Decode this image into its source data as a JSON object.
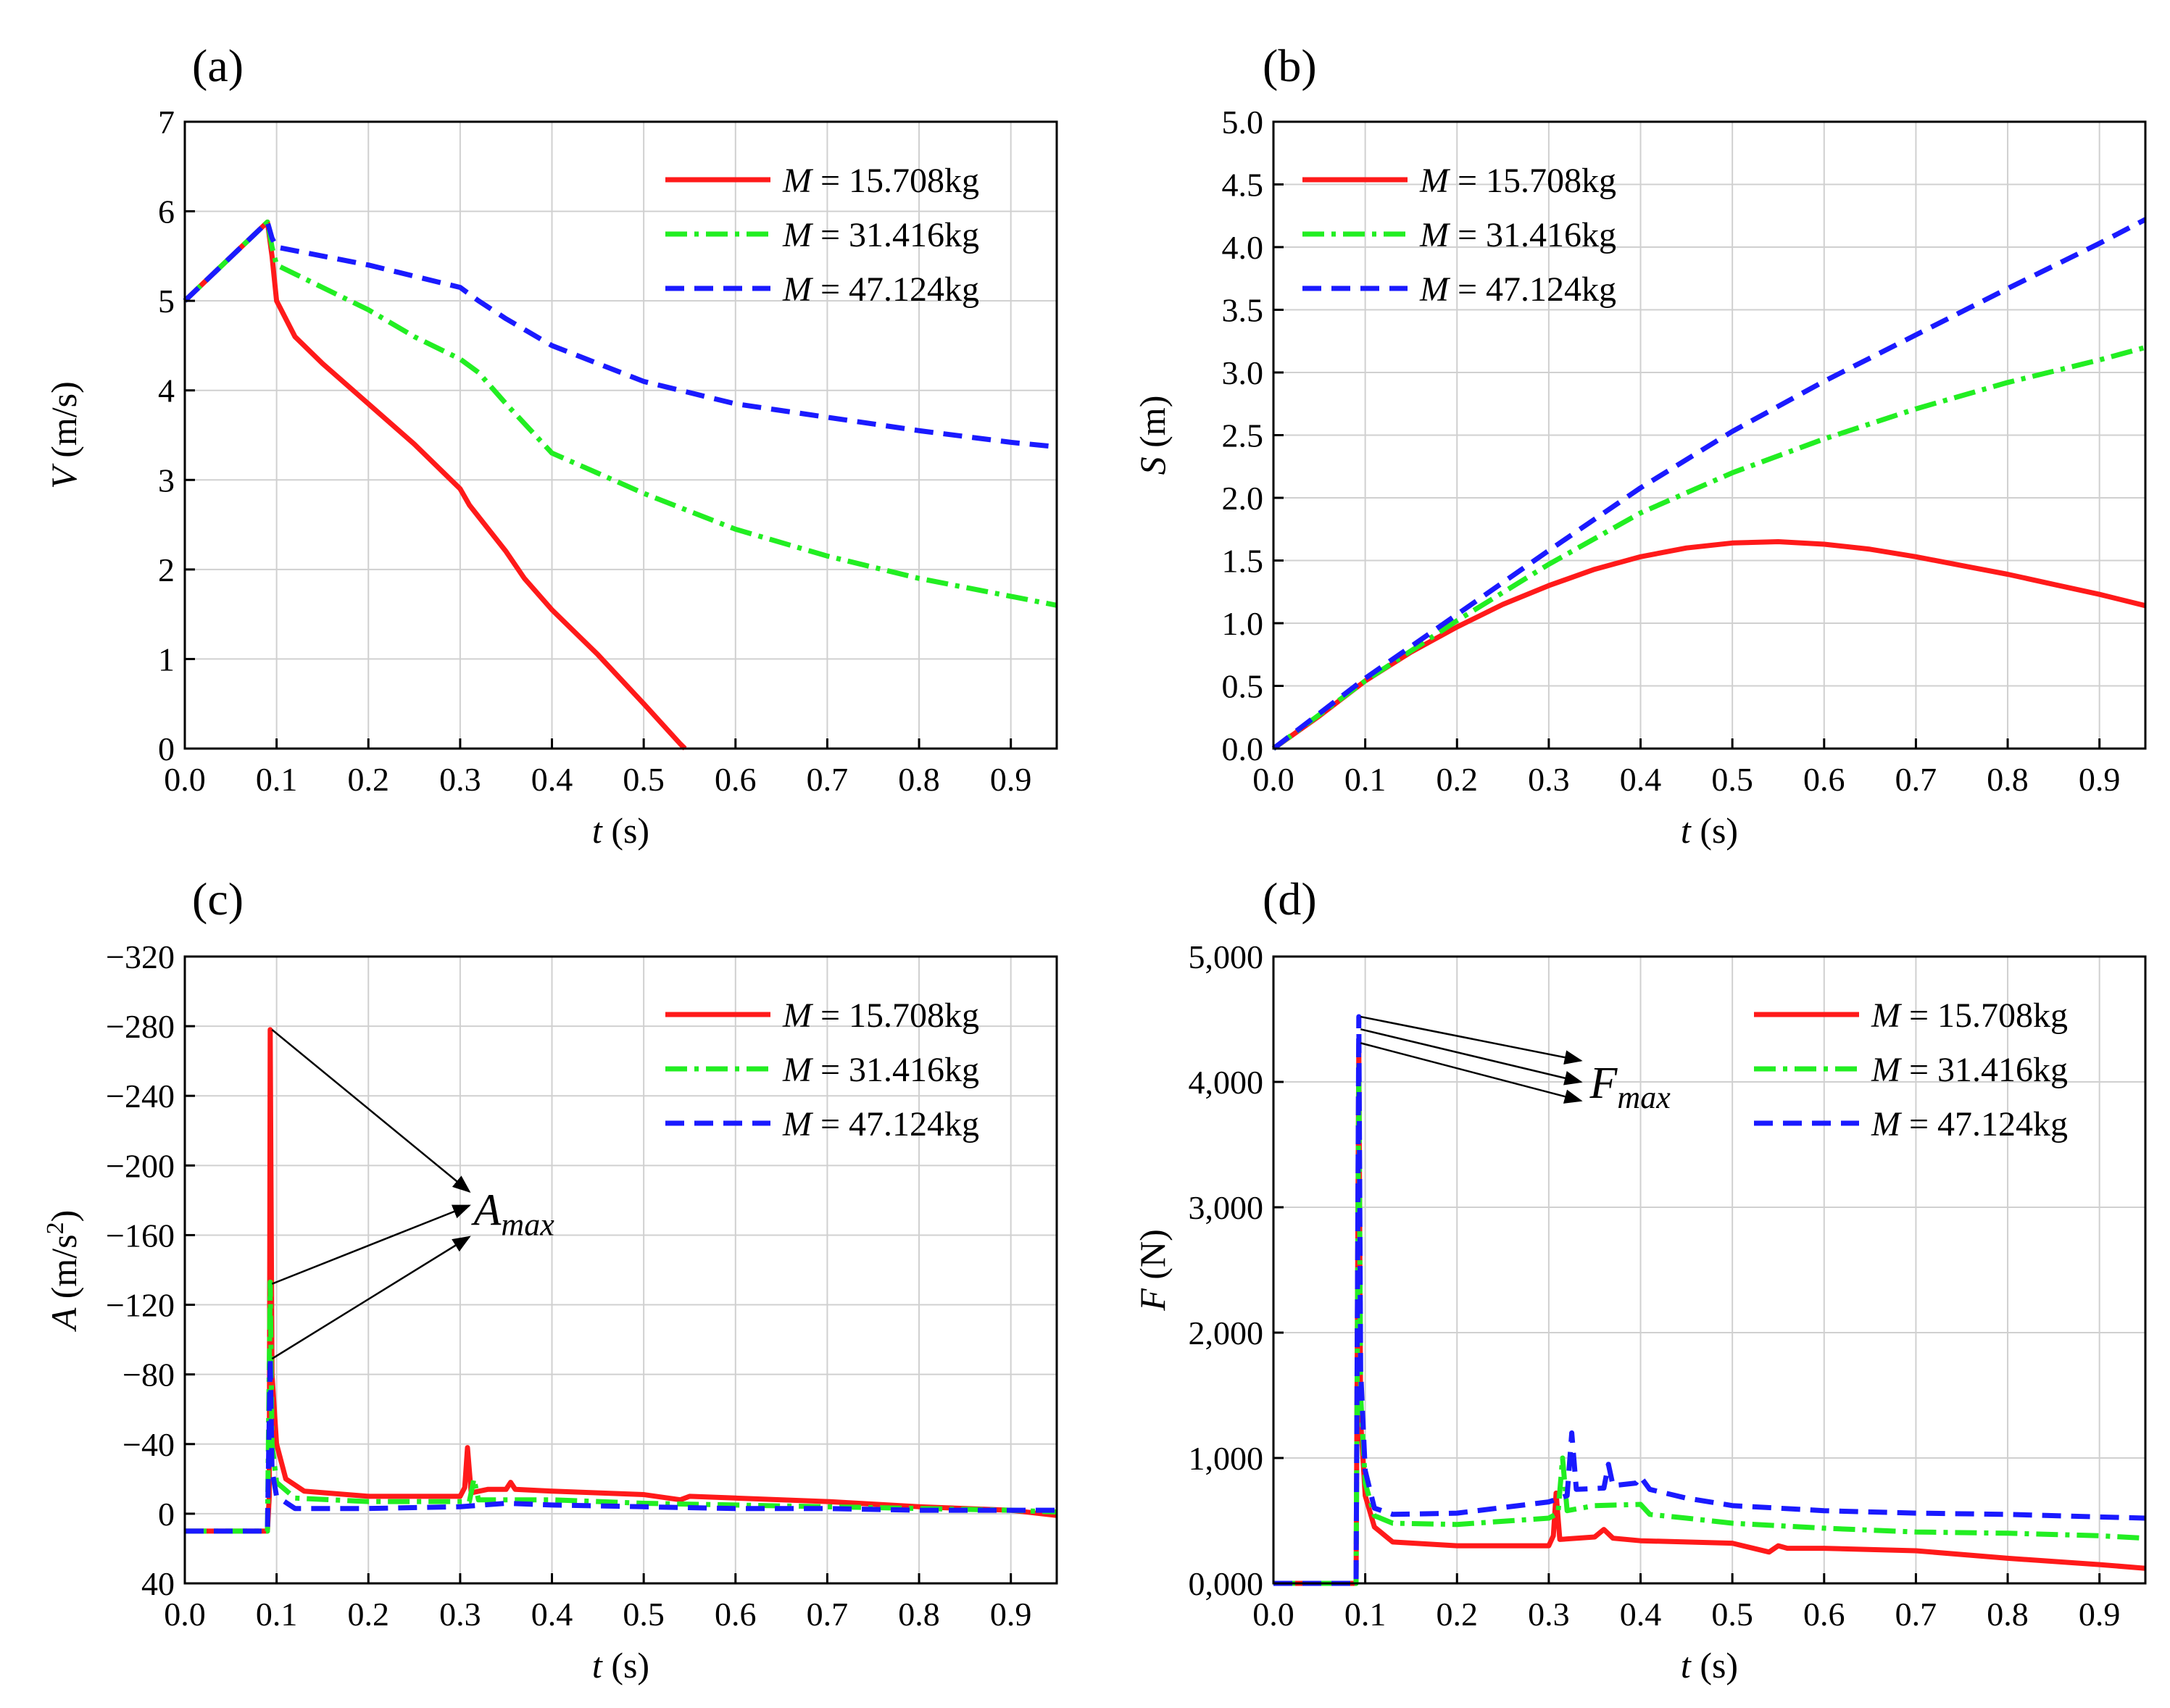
{
  "chart_data": [
    {
      "type": "line",
      "panel_label": "(a)",
      "xlabel_var": "t",
      "xlabel_unit": " (s)",
      "ylabel_var": "V",
      "ylabel_unit": " (m/s)",
      "xlim": [
        0,
        0.95
      ],
      "ylim": [
        0,
        7
      ],
      "y_inverted": false,
      "xticks": [
        0,
        0.1,
        0.2,
        0.3,
        0.4,
        0.5,
        0.6,
        0.7,
        0.8,
        0.9
      ],
      "xtick_labels": [
        "0.0",
        "0.1",
        "0.2",
        "0.3",
        "0.4",
        "0.5",
        "0.6",
        "0.7",
        "0.8",
        "0.9"
      ],
      "yticks": [
        0,
        1,
        2,
        3,
        4,
        5,
        6,
        7
      ],
      "ytick_labels": [
        "0",
        "1",
        "2",
        "3",
        "4",
        "5",
        "6",
        "7"
      ],
      "grid": true,
      "legend_position": "top-right",
      "series": [
        {
          "name": "M = 15.708kg",
          "legend_var": "M",
          "legend_text": " = 15.708kg",
          "color": "#ff1a1a",
          "dash": "solid",
          "x": [
            0,
            0.09,
            0.095,
            0.1,
            0.12,
            0.15,
            0.2,
            0.25,
            0.3,
            0.31,
            0.35,
            0.37,
            0.4,
            0.45,
            0.5,
            0.54,
            0.545
          ],
          "y": [
            5.0,
            5.88,
            5.5,
            5.0,
            4.6,
            4.3,
            3.85,
            3.4,
            2.9,
            2.72,
            2.2,
            1.9,
            1.55,
            1.05,
            0.5,
            0.05,
            0
          ]
        },
        {
          "name": "M = 31.416kg",
          "legend_var": "M",
          "legend_text": " = 31.416kg",
          "color": "#22ee22",
          "dash": "dashdot",
          "x": [
            0,
            0.09,
            0.095,
            0.1,
            0.15,
            0.2,
            0.25,
            0.3,
            0.32,
            0.35,
            0.4,
            0.5,
            0.6,
            0.7,
            0.8,
            0.9,
            0.95
          ],
          "y": [
            5.0,
            5.88,
            5.6,
            5.4,
            5.15,
            4.9,
            4.6,
            4.35,
            4.2,
            3.85,
            3.3,
            2.85,
            2.45,
            2.15,
            1.9,
            1.7,
            1.6
          ]
        },
        {
          "name": "M = 47.124kg",
          "legend_var": "M",
          "legend_text": " = 47.124kg",
          "color": "#1a1aff",
          "dash": "dash",
          "x": [
            0,
            0.09,
            0.095,
            0.1,
            0.2,
            0.3,
            0.32,
            0.35,
            0.4,
            0.5,
            0.6,
            0.7,
            0.8,
            0.9,
            0.95
          ],
          "y": [
            5.0,
            5.88,
            5.7,
            5.6,
            5.4,
            5.15,
            5.0,
            4.8,
            4.5,
            4.1,
            3.85,
            3.7,
            3.55,
            3.42,
            3.37
          ]
        }
      ],
      "annotations": []
    },
    {
      "type": "line",
      "panel_label": "(b)",
      "xlabel_var": "t",
      "xlabel_unit": " (s)",
      "ylabel_var": "S",
      "ylabel_unit": " (m)",
      "xlim": [
        0,
        0.95
      ],
      "ylim": [
        0,
        5
      ],
      "y_inverted": false,
      "xticks": [
        0,
        0.1,
        0.2,
        0.3,
        0.4,
        0.5,
        0.6,
        0.7,
        0.8,
        0.9
      ],
      "xtick_labels": [
        "0.0",
        "0.1",
        "0.2",
        "0.3",
        "0.4",
        "0.5",
        "0.6",
        "0.7",
        "0.8",
        "0.9"
      ],
      "yticks": [
        0,
        0.5,
        1,
        1.5,
        2,
        2.5,
        3,
        3.5,
        4,
        4.5,
        5
      ],
      "ytick_labels": [
        "0.0",
        "0.5",
        "1.0",
        "1.5",
        "2.0",
        "2.5",
        "3.0",
        "3.5",
        "4.0",
        "4.5",
        "5.0"
      ],
      "grid": true,
      "legend_position": "top-left",
      "series": [
        {
          "name": "M = 15.708kg",
          "legend_var": "M",
          "legend_text": " = 15.708kg",
          "color": "#ff1a1a",
          "dash": "solid",
          "x": [
            0,
            0.05,
            0.1,
            0.15,
            0.2,
            0.25,
            0.3,
            0.35,
            0.4,
            0.45,
            0.5,
            0.55,
            0.6,
            0.65,
            0.7,
            0.75,
            0.8,
            0.85,
            0.9,
            0.95
          ],
          "y": [
            0,
            0.26,
            0.54,
            0.77,
            0.97,
            1.15,
            1.3,
            1.43,
            1.53,
            1.6,
            1.64,
            1.65,
            1.63,
            1.59,
            1.53,
            1.46,
            1.39,
            1.31,
            1.23,
            1.14
          ]
        },
        {
          "name": "M = 31.416kg",
          "legend_var": "M",
          "legend_text": " = 31.416kg",
          "color": "#22ee22",
          "dash": "dashdot",
          "x": [
            0,
            0.1,
            0.2,
            0.3,
            0.4,
            0.5,
            0.6,
            0.7,
            0.8,
            0.9,
            0.95
          ],
          "y": [
            0,
            0.54,
            1.02,
            1.47,
            1.88,
            2.2,
            2.47,
            2.71,
            2.92,
            3.1,
            3.2
          ]
        },
        {
          "name": "M = 47.124kg",
          "legend_var": "M",
          "legend_text": " = 47.124kg",
          "color": "#1a1aff",
          "dash": "dash",
          "x": [
            0,
            0.1,
            0.2,
            0.3,
            0.4,
            0.5,
            0.6,
            0.7,
            0.8,
            0.9,
            0.95
          ],
          "y": [
            0,
            0.56,
            1.07,
            1.58,
            2.08,
            2.53,
            2.93,
            3.3,
            3.67,
            4.03,
            4.22
          ]
        }
      ],
      "annotations": []
    },
    {
      "type": "line",
      "panel_label": "(c)",
      "xlabel_var": "t",
      "xlabel_unit": " (s)",
      "ylabel_var": "A",
      "ylabel_unit": " (m/s",
      "ylabel_sup": "2",
      "ylabel_close": ")",
      "xlim": [
        0,
        0.95
      ],
      "ylim": [
        40,
        -320
      ],
      "y_inverted": true,
      "xticks": [
        0,
        0.1,
        0.2,
        0.3,
        0.4,
        0.5,
        0.6,
        0.7,
        0.8,
        0.9
      ],
      "xtick_labels": [
        "0.0",
        "0.1",
        "0.2",
        "0.3",
        "0.4",
        "0.5",
        "0.6",
        "0.7",
        "0.8",
        "0.9"
      ],
      "yticks": [
        40,
        0,
        -40,
        -80,
        -120,
        -160,
        -200,
        -240,
        -280,
        -320
      ],
      "ytick_labels": [
        "40",
        "0",
        "−40",
        "−80",
        "−120",
        "−160",
        "−200",
        "−240",
        "−280",
        "−320"
      ],
      "grid": true,
      "legend_position": "top-right",
      "series": [
        {
          "name": "M = 15.708kg",
          "legend_var": "M",
          "legend_text": " = 15.708kg",
          "color": "#ff1a1a",
          "dash": "solid",
          "x": [
            0,
            0.09,
            0.092,
            0.093,
            0.095,
            0.1,
            0.11,
            0.13,
            0.2,
            0.3,
            0.305,
            0.308,
            0.312,
            0.33,
            0.35,
            0.355,
            0.36,
            0.4,
            0.5,
            0.54,
            0.55,
            0.6,
            0.7,
            0.8,
            0.9,
            0.95
          ],
          "y": [
            10,
            10,
            -10,
            -278,
            -80,
            -40,
            -20,
            -13,
            -10,
            -10,
            -15,
            -38,
            -12,
            -14,
            -14,
            -18,
            -14,
            -13,
            -11,
            -8,
            -10,
            -9,
            -7,
            -4,
            -2,
            1
          ]
        },
        {
          "name": "M = 31.416kg",
          "legend_var": "M",
          "legend_text": " = 31.416kg",
          "color": "#22ee22",
          "dash": "dashdot",
          "x": [
            0,
            0.09,
            0.093,
            0.095,
            0.1,
            0.12,
            0.2,
            0.3,
            0.31,
            0.315,
            0.32,
            0.4,
            0.5,
            0.6,
            0.7,
            0.8,
            0.9,
            0.95
          ],
          "y": [
            10,
            10,
            -133,
            -40,
            -18,
            -9,
            -7,
            -7,
            -7,
            -20,
            -8,
            -8,
            -6,
            -5,
            -4,
            -3,
            -2,
            -1
          ]
        },
        {
          "name": "M = 47.124kg",
          "legend_var": "M",
          "legend_text": " = 47.124kg",
          "color": "#1a1aff",
          "dash": "dash",
          "x": [
            0,
            0.09,
            0.093,
            0.095,
            0.1,
            0.12,
            0.2,
            0.3,
            0.35,
            0.4,
            0.5,
            0.6,
            0.7,
            0.8,
            0.9,
            0.95
          ],
          "y": [
            10,
            10,
            -90,
            -25,
            -10,
            -3,
            -3,
            -4,
            -6,
            -5,
            -4,
            -3,
            -3,
            -2,
            -2,
            -2
          ]
        }
      ],
      "annotations": [
        {
          "text": "A",
          "sub": "max",
          "x": 0.31,
          "y": -175,
          "arrows_from": [
            [
              0.095,
              -278
            ],
            [
              0.095,
              -132
            ],
            [
              0.095,
              -89
            ]
          ],
          "arrows_to": [
            [
              0.31,
              -185
            ],
            [
              0.31,
              -177
            ],
            [
              0.31,
              -159
            ]
          ]
        }
      ]
    },
    {
      "type": "line",
      "panel_label": "(d)",
      "xlabel_var": "t",
      "xlabel_unit": " (s)",
      "ylabel_var": "F",
      "ylabel_unit": " (N)",
      "xlim": [
        0,
        0.95
      ],
      "ylim": [
        0,
        5000
      ],
      "y_inverted": false,
      "xticks": [
        0,
        0.1,
        0.2,
        0.3,
        0.4,
        0.5,
        0.6,
        0.7,
        0.8,
        0.9
      ],
      "xtick_labels": [
        "0.0",
        "0.1",
        "0.2",
        "0.3",
        "0.4",
        "0.5",
        "0.6",
        "0.7",
        "0.8",
        "0.9"
      ],
      "yticks": [
        0,
        1000,
        2000,
        3000,
        4000,
        5000
      ],
      "ytick_labels": [
        "0,000",
        "1,000",
        "2,000",
        "3,000",
        "4,000",
        "5,000"
      ],
      "grid": true,
      "legend_position": "top-right",
      "series": [
        {
          "name": "M = 15.708kg",
          "legend_var": "M",
          "legend_text": " = 15.708kg",
          "color": "#ff1a1a",
          "dash": "solid",
          "x": [
            0,
            0.09,
            0.093,
            0.095,
            0.1,
            0.11,
            0.13,
            0.2,
            0.3,
            0.305,
            0.308,
            0.312,
            0.35,
            0.36,
            0.37,
            0.4,
            0.5,
            0.54,
            0.55,
            0.56,
            0.6,
            0.7,
            0.8,
            0.9,
            0.95
          ],
          "y": [
            0,
            0,
            4300,
            1300,
            700,
            450,
            330,
            300,
            300,
            380,
            720,
            350,
            370,
            430,
            360,
            340,
            320,
            250,
            300,
            280,
            280,
            260,
            200,
            150,
            120
          ]
        },
        {
          "name": "M = 31.416kg",
          "legend_var": "M",
          "legend_text": " = 31.416kg",
          "color": "#22ee22",
          "dash": "dashdot",
          "x": [
            0,
            0.09,
            0.093,
            0.095,
            0.1,
            0.11,
            0.13,
            0.2,
            0.3,
            0.31,
            0.315,
            0.32,
            0.35,
            0.4,
            0.41,
            0.45,
            0.5,
            0.6,
            0.7,
            0.8,
            0.9,
            0.95
          ],
          "y": [
            0,
            0,
            4150,
            1500,
            800,
            540,
            480,
            470,
            520,
            560,
            1000,
            580,
            620,
            630,
            550,
            520,
            480,
            440,
            410,
            400,
            380,
            360
          ]
        },
        {
          "name": "M = 47.124kg",
          "legend_var": "M",
          "legend_text": " = 47.124kg",
          "color": "#1a1aff",
          "dash": "dash",
          "x": [
            0,
            0.09,
            0.093,
            0.095,
            0.1,
            0.11,
            0.13,
            0.2,
            0.3,
            0.32,
            0.325,
            0.33,
            0.36,
            0.365,
            0.37,
            0.395,
            0.4,
            0.41,
            0.45,
            0.5,
            0.55,
            0.6,
            0.7,
            0.8,
            0.9,
            0.95
          ],
          "y": [
            0,
            0,
            4520,
            1700,
            900,
            600,
            550,
            560,
            650,
            700,
            1200,
            750,
            760,
            950,
            780,
            800,
            850,
            750,
            680,
            620,
            600,
            580,
            560,
            550,
            530,
            520
          ]
        }
      ],
      "annotations": [
        {
          "text": "F",
          "sub": "max",
          "x": 0.34,
          "y": 4000,
          "arrows_from": [
            [
              0.095,
              4520
            ],
            [
              0.095,
              4420
            ],
            [
              0.095,
              4310
            ]
          ],
          "arrows_to": [
            [
              0.335,
              4170
            ],
            [
              0.335,
              4000
            ],
            [
              0.335,
              3850
            ]
          ]
        }
      ]
    }
  ]
}
